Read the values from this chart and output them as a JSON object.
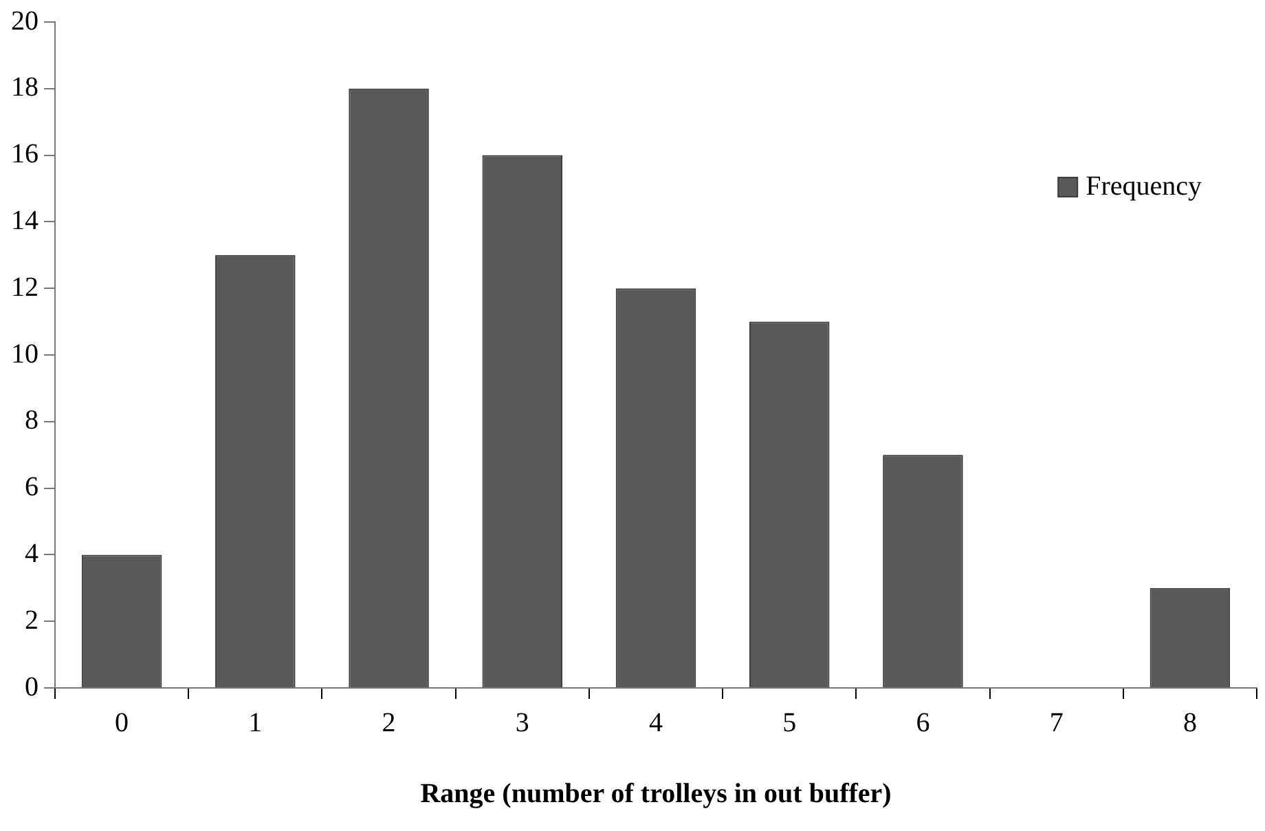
{
  "chart_data": {
    "type": "bar",
    "xlabel": "Range (number of trolleys in out buffer)",
    "categories": [
      "0",
      "1",
      "2",
      "3",
      "4",
      "5",
      "6",
      "7",
      "8"
    ],
    "series": [
      {
        "name": "Frequency",
        "color": "#595959",
        "values": [
          4,
          13,
          18,
          16,
          12,
          11,
          7,
          0,
          3
        ]
      }
    ],
    "ylim": [
      0,
      20
    ],
    "yticks": [
      0,
      2,
      4,
      6,
      8,
      10,
      12,
      14,
      16,
      18,
      20
    ],
    "grid": false,
    "legend": "top right"
  }
}
